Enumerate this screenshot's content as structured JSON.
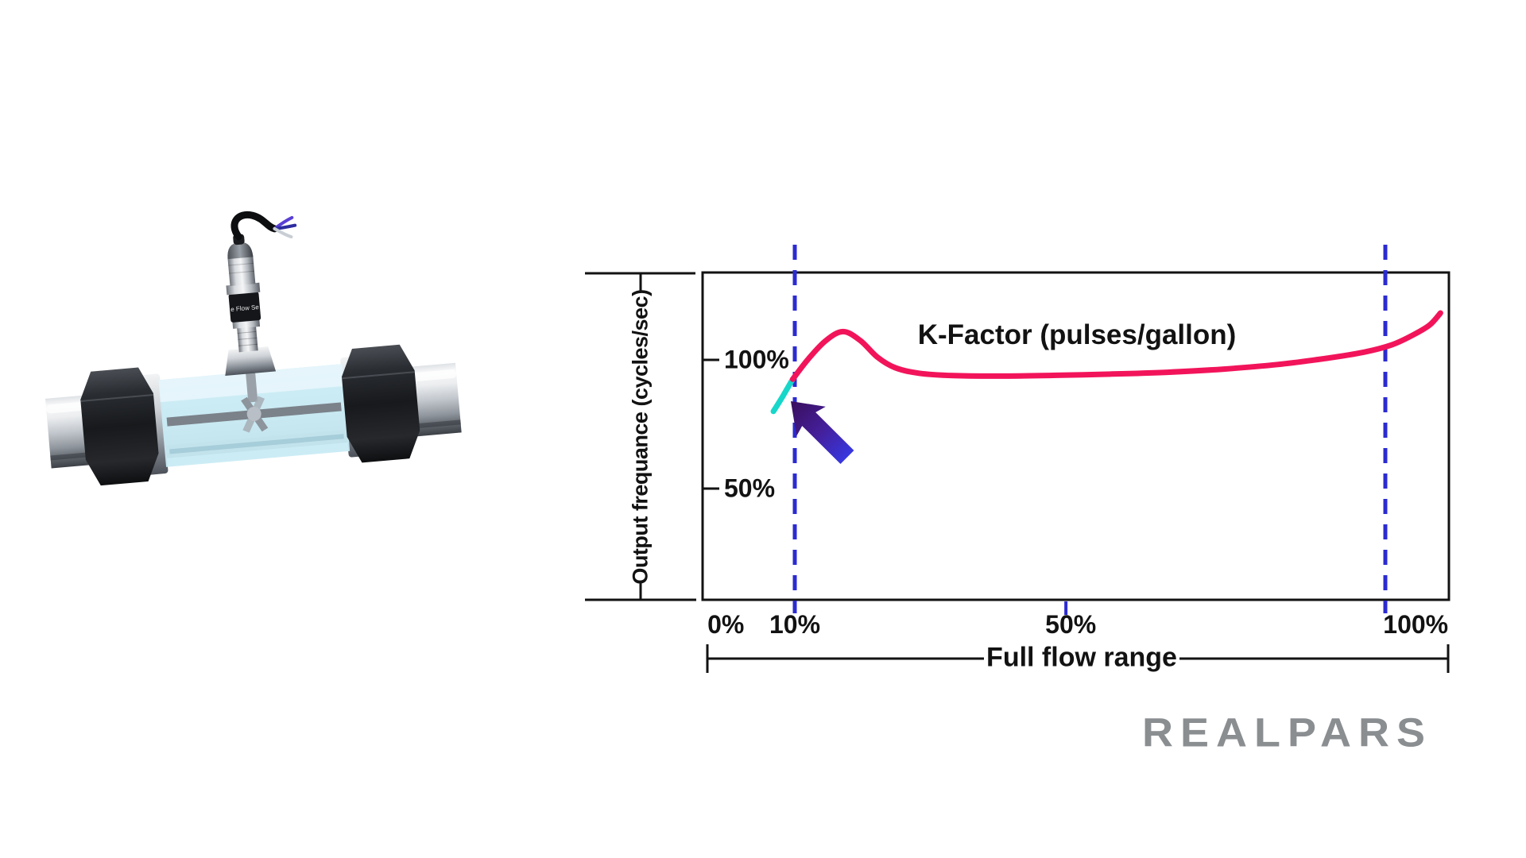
{
  "page": {
    "background": "#ffffff"
  },
  "illustration": {
    "label": "Turbine flow meter cutaway render",
    "sensor_band_text": "e Flow Se"
  },
  "chart": {
    "curve_title": "K-Factor (pulses/gallon)",
    "y_axis_label": "Output frequance (cycles/sec)",
    "x_axis_label": "Full flow range"
  },
  "chart_data": {
    "type": "line",
    "title": "K-Factor (pulses/gallon)",
    "xlabel": "Full flow range",
    "ylabel": "Output frequance (cycles/sec)",
    "x_ticks": [
      {
        "label": "0%",
        "value": 0
      },
      {
        "label": "10%",
        "value": 10
      },
      {
        "label": "50%",
        "value": 50
      },
      {
        "label": "100%",
        "value": 100
      }
    ],
    "y_ticks": [
      {
        "label": "100%",
        "value": 100
      },
      {
        "label": "50%",
        "value": 50
      }
    ],
    "xlim_pct": [
      0,
      105
    ],
    "ylim_pct": [
      0,
      135
    ],
    "grid": false,
    "legend": "none",
    "series": [
      {
        "name": "K-Factor curve",
        "color": "#F2145B",
        "width": 7,
        "points": [
          [
            9.7,
            92.5
          ],
          [
            12,
            100.5
          ],
          [
            14.5,
            107.5
          ],
          [
            17,
            111
          ],
          [
            19.5,
            107.5
          ],
          [
            22,
            101
          ],
          [
            24.5,
            97
          ],
          [
            28,
            94.8
          ],
          [
            33,
            93.9
          ],
          [
            40,
            93.7
          ],
          [
            48,
            94
          ],
          [
            56,
            94.5
          ],
          [
            64,
            95.2
          ],
          [
            72,
            96.4
          ],
          [
            80,
            98.2
          ],
          [
            87,
            100.6
          ],
          [
            92.5,
            103
          ],
          [
            96.5,
            105.8
          ],
          [
            99.5,
            109.5
          ],
          [
            102,
            113.5
          ],
          [
            103.6,
            118.2
          ]
        ]
      },
      {
        "name": "Low-flow nonlinear segment",
        "color": "#16D7C9",
        "width": 7,
        "points": [
          [
            6.9,
            80
          ],
          [
            8.2,
            85.6
          ],
          [
            9.7,
            92.5
          ]
        ]
      }
    ],
    "annotations": {
      "vlines_pct": [
        10,
        95.6
      ],
      "vline_color": "#2B2BD2",
      "axis_tick_pct": 49.3,
      "arrow": {
        "tip": [
          9.4,
          84
        ],
        "tail": [
          17.6,
          62.2
        ],
        "head_color": "#3A0E5C",
        "tail_color": "#3737DF"
      }
    }
  },
  "logo": {
    "text": "REALPARS",
    "color": "#8A8E91"
  }
}
